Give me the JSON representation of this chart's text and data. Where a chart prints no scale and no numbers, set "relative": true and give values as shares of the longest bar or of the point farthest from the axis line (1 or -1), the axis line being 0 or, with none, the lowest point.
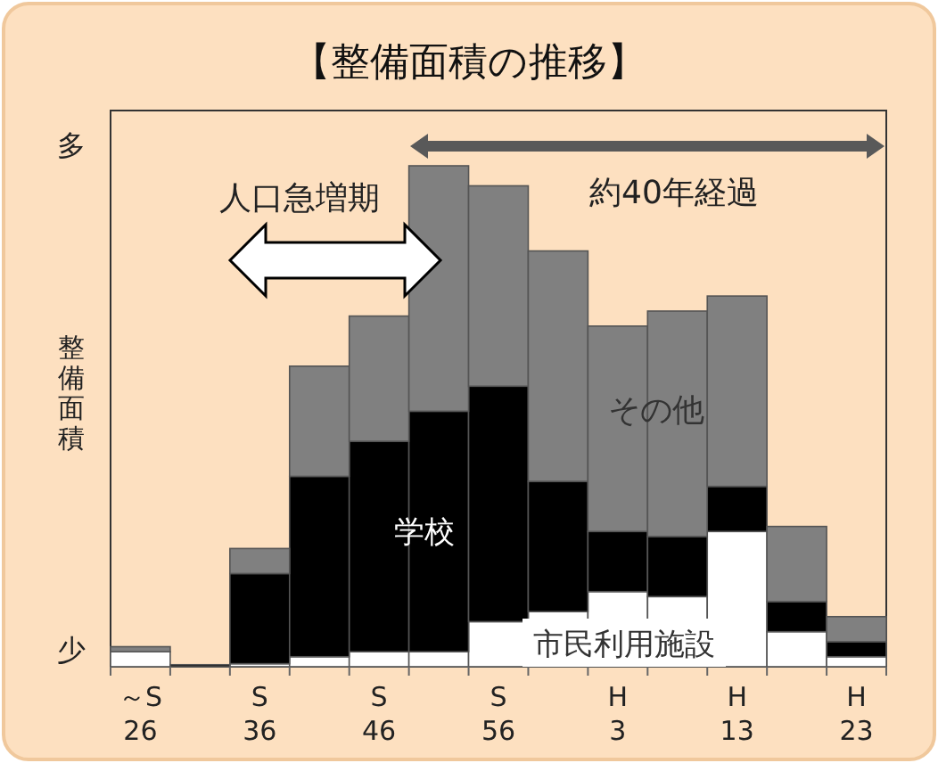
{
  "chart_data": {
    "type": "bar",
    "title": "【整備面積の推移】",
    "ylabel": "整備面積",
    "relative": true,
    "stacked": true,
    "categories": [
      "～S\n26",
      null,
      "S\n36",
      null,
      "S\n46",
      null,
      "S\n56",
      null,
      "H\n3",
      null,
      "H\n13",
      null,
      "H\n23"
    ],
    "series": [
      {
        "name": "市民利用施設",
        "color": "#ffffff",
        "values": [
          0.03,
          0,
          0.006,
          0.02,
          0.03,
          0.03,
          0.09,
          0.11,
          0.15,
          0.14,
          0.27,
          0.07,
          0.02
        ]
      },
      {
        "name": "学校",
        "color": "#000000",
        "values": [
          0,
          0.004,
          0.18,
          0.36,
          0.42,
          0.48,
          0.47,
          0.26,
          0.12,
          0.12,
          0.09,
          0.06,
          0.03
        ]
      },
      {
        "name": "その他",
        "color": "#808080",
        "values": [
          0.01,
          0,
          0.05,
          0.22,
          0.25,
          0.49,
          0.4,
          0.46,
          0.41,
          0.45,
          0.38,
          0.15,
          0.05
        ]
      }
    ],
    "annotations": [
      "多",
      "少",
      "人口急増期",
      "約40年経過"
    ]
  }
}
